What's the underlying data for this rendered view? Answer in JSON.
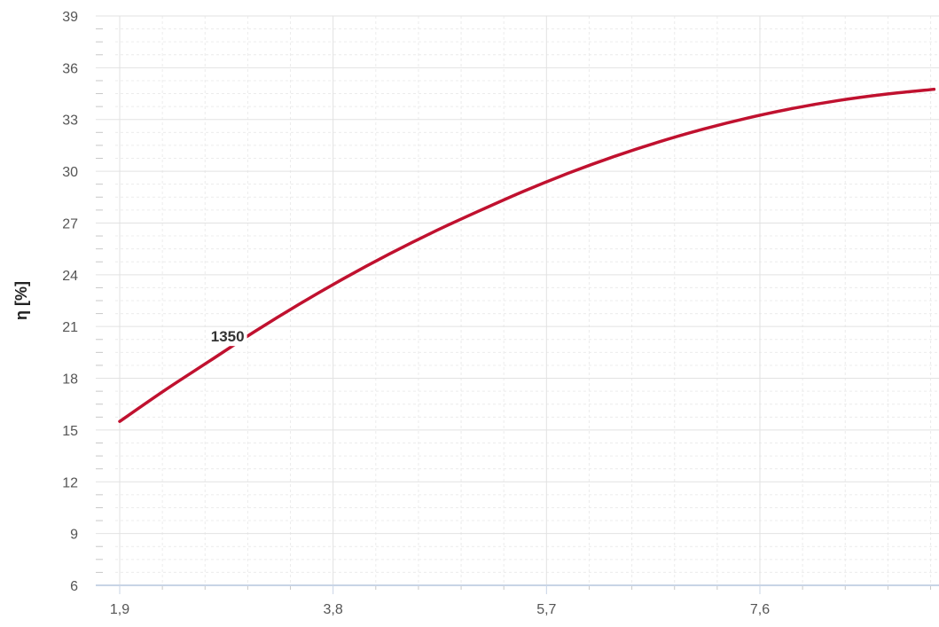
{
  "chart_data": {
    "type": "line",
    "title": "",
    "xlabel": "",
    "ylabel": "η [%]",
    "xlim": [
      1.9,
      9.15
    ],
    "ylim": [
      6,
      39
    ],
    "x_ticks": [
      1.9,
      3.8,
      5.7,
      7.6
    ],
    "x_tick_labels": [
      "1,9",
      "3,8",
      "5,7",
      "7,6"
    ],
    "y_ticks": [
      6,
      9,
      12,
      15,
      18,
      21,
      24,
      27,
      30,
      33,
      36,
      39
    ],
    "y_tick_labels": [
      "6",
      "9",
      "12",
      "15",
      "18",
      "21",
      "24",
      "27",
      "30",
      "33",
      "36",
      "39"
    ],
    "grid": true,
    "legend": "none",
    "series": [
      {
        "label": "1350",
        "label_at_x": 3.05,
        "color": "#c0112f",
        "x": [
          1.9,
          2.3,
          2.7,
          3.1,
          3.5,
          3.9,
          4.3,
          4.7,
          5.1,
          5.5,
          5.9,
          6.3,
          6.7,
          7.1,
          7.5,
          7.9,
          8.3,
          8.7,
          9.15
        ],
        "y": [
          15.5,
          17.3,
          19.0,
          20.7,
          22.3,
          23.8,
          25.2,
          26.5,
          27.7,
          28.85,
          29.9,
          30.85,
          31.7,
          32.45,
          33.1,
          33.65,
          34.1,
          34.45,
          34.75
        ]
      }
    ]
  }
}
